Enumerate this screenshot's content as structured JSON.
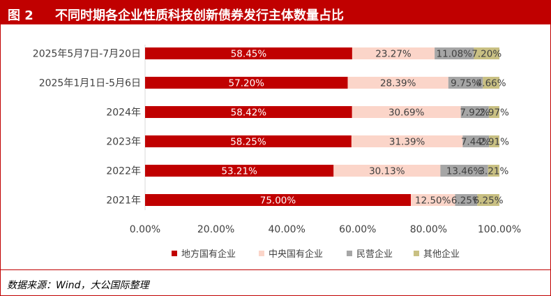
{
  "figure": {
    "number": "图 2",
    "title": "不同时期各企业性质科技创新债券发行主体数量占比"
  },
  "source": "数据来源：Wind，大公国际整理",
  "colors": {
    "title_bg": "#c00000",
    "axis_text": "#404040"
  },
  "chart_data": {
    "type": "bar",
    "orientation": "horizontal",
    "stacked": true,
    "percent": true,
    "categories": [
      "2025年5月7日-7月20日",
      "2025年1月1日-5月6日",
      "2024年",
      "2023年",
      "2022年",
      "2021年"
    ],
    "series": [
      {
        "name": "地方国有企业",
        "color": "#c00000",
        "label_color": "#ffffff",
        "values": [
          58.45,
          57.2,
          58.42,
          58.25,
          53.21,
          75.0
        ],
        "labels": [
          "58.45%",
          "57.20%",
          "58.42%",
          "58.25%",
          "53.21%",
          "75.00%"
        ]
      },
      {
        "name": "中央国有企业",
        "color": "#fbd5c9",
        "label_color": "#404040",
        "values": [
          23.27,
          28.39,
          30.69,
          31.39,
          30.13,
          12.5
        ],
        "labels": [
          "23.27%",
          "28.39%",
          "30.69%",
          "31.39%",
          "30.13%",
          "12.50%"
        ]
      },
      {
        "name": "民营企业",
        "color": "#a6a6a6",
        "label_color": "#404040",
        "values": [
          11.08,
          9.75,
          7.92,
          7.44,
          13.46,
          6.25
        ],
        "labels": [
          "11.08%",
          "9.75%",
          "7.92%",
          "7.44%",
          "13.46%",
          "6.25%"
        ]
      },
      {
        "name": "其他企业",
        "color": "#c9c083",
        "label_color": "#404040",
        "values": [
          7.2,
          4.66,
          2.97,
          2.91,
          3.21,
          6.25
        ],
        "labels": [
          "7.20%",
          "4.66%",
          "2.97%",
          "2.91%",
          "3.21%",
          "6.25%"
        ]
      }
    ],
    "xaxis": {
      "min": 0,
      "max": 100,
      "ticks": [
        "0.00%",
        "20.00%",
        "40.00%",
        "60.00%",
        "80.00%",
        "100.00%"
      ]
    },
    "grid": false,
    "legend": "bottom"
  }
}
